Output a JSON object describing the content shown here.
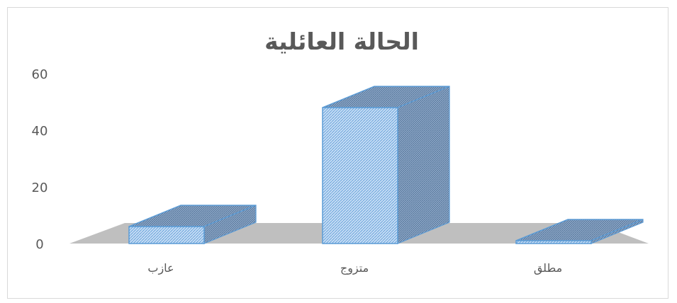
{
  "chart_data": {
    "type": "bar",
    "title": "الحالة العائلية",
    "categories": [
      "عازب",
      "متزوج",
      "مطلق"
    ],
    "values": [
      6,
      48,
      1
    ],
    "ylim": [
      0,
      60
    ],
    "yticks": [
      0,
      20,
      40,
      60
    ],
    "three_d": true,
    "gridlines": false,
    "legend": "none",
    "colors": {
      "bar_fill": "#c5dcf5",
      "bar_hatch": "#5b9bd5",
      "bar_top": "#7e9bbd",
      "bar_stroke": "#5b9bd5",
      "floor": "#bfbfbf",
      "text": "#595959"
    }
  }
}
